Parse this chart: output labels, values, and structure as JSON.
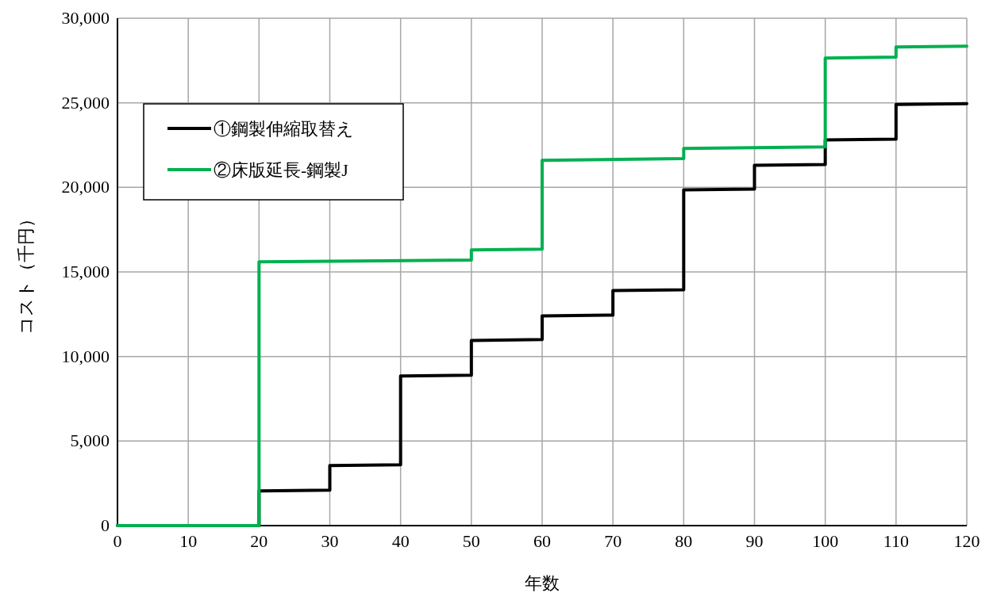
{
  "chart_data": {
    "type": "line",
    "xlabel": "年数",
    "ylabel": "コスト（千円）",
    "xlim": [
      0,
      120
    ],
    "xticks": [
      0,
      10,
      20,
      30,
      40,
      50,
      60,
      70,
      80,
      90,
      100,
      110,
      120
    ],
    "ylim": [
      0,
      30000
    ],
    "yticks": [
      {
        "value": 0,
        "label": "0"
      },
      {
        "value": 5000,
        "label": "5,000"
      },
      {
        "value": 10000,
        "label": "10,000"
      },
      {
        "value": 15000,
        "label": "15,000"
      },
      {
        "value": 20000,
        "label": "20,000"
      },
      {
        "value": 25000,
        "label": "25,000"
      },
      {
        "value": 30000,
        "label": "30,000"
      }
    ],
    "grid": true,
    "legend": "top left",
    "marker": "none",
    "line_style": "solid",
    "series": [
      {
        "name": "①鋼製伸縮取替え",
        "color": "#000000",
        "x": [
          0,
          20,
          20,
          30,
          30,
          40,
          40,
          50,
          50,
          60,
          60,
          70,
          70,
          80,
          80,
          90,
          90,
          100,
          100,
          110,
          110,
          120
        ],
        "values": [
          0,
          0,
          2050,
          2100,
          3550,
          3600,
          8850,
          8900,
          10950,
          11000,
          12400,
          12450,
          13900,
          13950,
          19850,
          19900,
          21300,
          21350,
          22800,
          22850,
          24900,
          24950
        ]
      },
      {
        "name": "②床版延長-鋼製J",
        "color": "#00b050",
        "x": [
          0,
          20,
          20,
          50,
          50,
          60,
          60,
          80,
          80,
          100,
          100,
          110,
          110,
          120
        ],
        "values": [
          0,
          0,
          15600,
          15700,
          16300,
          16350,
          21600,
          21700,
          22300,
          22400,
          27650,
          27700,
          28300,
          28350
        ]
      }
    ]
  }
}
